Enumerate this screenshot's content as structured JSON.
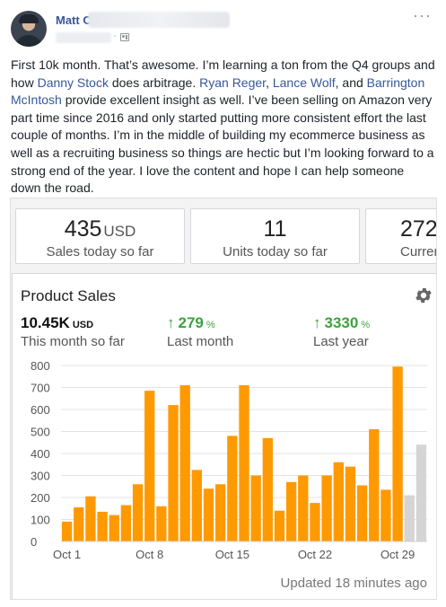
{
  "post": {
    "author_name": "Matt C",
    "more_glyph": "···",
    "body": {
      "t1": "First 10k month. That’s awesome. I’m learning a ton from the Q4 groups and how ",
      "mention1": "Danny Stock",
      "t2": " does arbitrage. ",
      "mention2": "Ryan Reger",
      "t3": ", ",
      "mention3": "Lance Wolf",
      "t4": ", and ",
      "mention4": "Barrington McIntosh",
      "t5": " provide excellent insight as well. I’ve been selling on Amazon very part time since 2016 and only started putting more consistent effort the last couple of months. I’m in the middle of building my ecommerce business as well as a recruiting business so things are hectic but I’m looking forward to a strong end of the year. I love the content and hope I can help someone down the road."
    }
  },
  "dashboard": {
    "tiles": [
      {
        "value": "435",
        "unit": "USD",
        "label": "Sales today so far"
      },
      {
        "value": "11",
        "unit": "",
        "label": "Units today so far"
      },
      {
        "value": "272",
        "unit": "",
        "label": "Curren"
      }
    ],
    "card_title": "Product Sales",
    "stats": [
      {
        "value": "10.45K",
        "unit": "USD",
        "label": "This month so far"
      },
      {
        "arrow": "↑",
        "value": "279",
        "unit": "%",
        "label": "Last month"
      },
      {
        "arrow": "↑",
        "value": "3330",
        "unit": "%",
        "label": "Last year"
      }
    ],
    "updated": "Updated 18 minutes ago",
    "colors": {
      "bar": "#ff9900",
      "bar_future": "#d5d5d5",
      "gain": "#3ca33c",
      "link": "#365899"
    }
  },
  "chart_data": {
    "type": "bar",
    "yticks": [
      "0",
      "100",
      "200",
      "300",
      "400",
      "500",
      "600",
      "700",
      "800"
    ],
    "ylim": [
      0,
      800
    ],
    "xtick_labels": [
      "Oct 1",
      "Oct 8",
      "Oct 15",
      "Oct 22",
      "Oct 29"
    ],
    "xtick_index": [
      0,
      7,
      14,
      21,
      28
    ],
    "series": [
      {
        "values": [
          90,
          155,
          205,
          135,
          120,
          165,
          260,
          685,
          160,
          620,
          710,
          325,
          240,
          260,
          480,
          710,
          300,
          470,
          140,
          270,
          300,
          175,
          300,
          360,
          340,
          255,
          510,
          235,
          795
        ]
      },
      {
        "values": [
          210,
          440
        ]
      }
    ],
    "grid": true
  }
}
